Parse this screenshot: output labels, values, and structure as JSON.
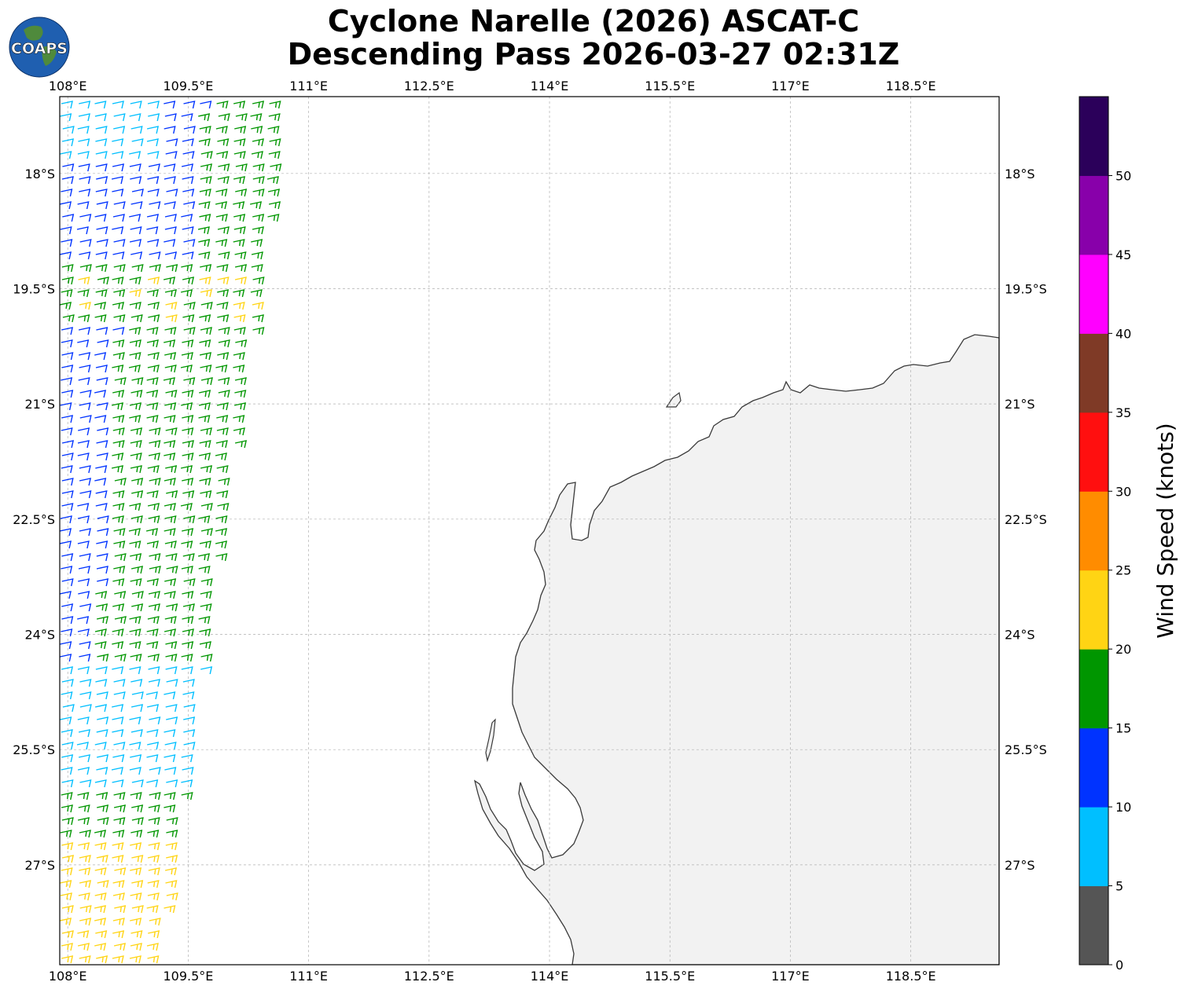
{
  "title": {
    "line1": "Cyclone Narelle (2026) ASCAT-C",
    "line2": "Descending Pass 2026-03-27 02:31Z"
  },
  "logo": {
    "text": "COAPS",
    "icon": "globe-logo-icon"
  },
  "map": {
    "lon_range": [
      107.9,
      119.6
    ],
    "lat_range": [
      -28.3,
      -17.0
    ],
    "lon_ticks": [
      "108°E",
      "109.5°E",
      "111°E",
      "112.5°E",
      "114°E",
      "115.5°E",
      "117°E",
      "118.5°E"
    ],
    "lon_tick_values": [
      108,
      109.5,
      111,
      112.5,
      114,
      115.5,
      117,
      118.5
    ],
    "lat_ticks": [
      "18°S",
      "19.5°S",
      "21°S",
      "22.5°S",
      "24°S",
      "25.5°S",
      "27°S"
    ],
    "lat_tick_values": [
      -18,
      -19.5,
      -21,
      -22.5,
      -24,
      -25.5,
      -27
    ],
    "grid": true,
    "land_color": "#f2f2f2",
    "coast_color": "#333333"
  },
  "colorbar": {
    "label": "Wind Speed (knots)",
    "ticks": [
      "0",
      "5",
      "10",
      "15",
      "20",
      "25",
      "30",
      "35",
      "40",
      "45",
      "50"
    ],
    "colors": [
      "#555555",
      "#00bfff",
      "#0033ff",
      "#009600",
      "#ffd414",
      "#ff8c00",
      "#ff0f0f",
      "#7f3a26",
      "#ff00ff",
      "#8800aa",
      "#2b005a"
    ]
  }
}
